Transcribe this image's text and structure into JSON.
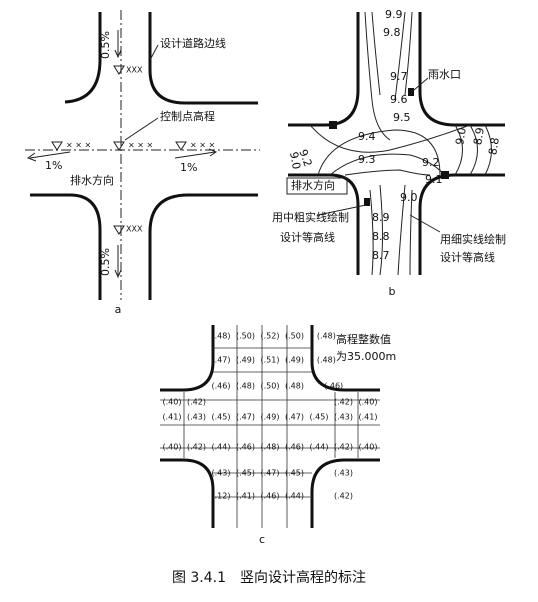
{
  "panel_a": {
    "label": "a",
    "slope_top": "0.5%",
    "road_edge": "设计道路边线",
    "markers_top": "XXX",
    "control_point": "控制点高程",
    "markers_left": "× × ×",
    "markers_center": "× × ×",
    "markers_right": "× × ×",
    "slope_left": "1%",
    "slope_right": "1%",
    "drainage": "排水方向",
    "markers_bottom": "XXX",
    "slope_bottom": "0.5%"
  },
  "panel_b": {
    "label": "b",
    "contours_top": [
      "9.9",
      "9.8",
      "9.7",
      "9.6",
      "9.5"
    ],
    "contours_mid": [
      "9.4",
      "9.3",
      "9.2",
      "9.1",
      "9.0"
    ],
    "contours_bottom": [
      "8.9",
      "8.8",
      "8.7"
    ],
    "left_labels": [
      "9.2",
      "9.0"
    ],
    "right_labels": [
      "9.0",
      "8.9",
      "8.8"
    ],
    "inlet": "雨水口",
    "drainage": "排水方向",
    "medium_line": [
      "用中粗实线绘制",
      "设计等高线"
    ],
    "thin_line": [
      "用细实线绘制",
      "设计等高线"
    ]
  },
  "panel_c": {
    "label": "c",
    "note": [
      "高程整数值",
      "为35.000m"
    ],
    "rows": [
      [
        "(.48)",
        "(.50)",
        "(.52)",
        "(.50)",
        "(.48)"
      ],
      [
        "(.47)",
        "(.49)",
        "(.51)",
        "(.49)",
        "(.48)"
      ],
      [
        "(.46)",
        "(.48)",
        "(.50)",
        "(.48)",
        "(.46)"
      ],
      [
        "(.40)",
        "(.42)",
        "(.42)",
        "(.40)"
      ],
      [
        "(.41)",
        "(.43)",
        "(.45)",
        "(.47)",
        "(.49)",
        "(.47)",
        "(.45)",
        "(.43)",
        "(.41)"
      ],
      [
        "(.40)",
        "(.42)",
        "(.44)",
        "(.46)",
        "(.48)",
        "(.46)",
        "(.44)",
        "(.42)",
        "(.40)"
      ],
      [
        "(.43)",
        "(.45)",
        "(.47)",
        "(.45)",
        "(.43)"
      ],
      [
        "(.12)",
        "(.41)",
        "(.46)",
        "(.44)",
        "(.42)"
      ]
    ]
  },
  "caption": "图 3.4.1　竖向设计高程的标注"
}
